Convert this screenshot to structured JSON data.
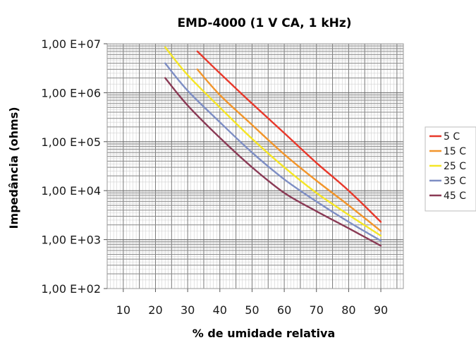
{
  "chart_data": {
    "type": "line",
    "title": "EMD-4000 (1 V CA, 1 kHz)",
    "xlabel": "% de umidade relativa",
    "ylabel": "Impedância (ohms)",
    "xlim": [
      5,
      97
    ],
    "ylim": [
      100,
      10000000
    ],
    "yscale": "log",
    "x_ticks": [
      10,
      20,
      30,
      40,
      50,
      60,
      70,
      80,
      90
    ],
    "y_ticks": [
      100,
      1000,
      10000,
      100000,
      1000000,
      10000000
    ],
    "y_tick_labels": [
      "1,00 E+02",
      "1,00 E+03",
      "1,00 E+04",
      "1,00 E+05",
      "1,00 E+06",
      "1,00 E+07"
    ],
    "grid": true,
    "legend": "right",
    "series": [
      {
        "name": "5 C",
        "color": "#e8382a",
        "x": [
          33,
          40,
          50,
          60,
          70,
          80,
          90
        ],
        "y": [
          7000000,
          2500000,
          600000,
          150000,
          37000,
          10000,
          2300
        ]
      },
      {
        "name": "15 C",
        "color": "#f2952b",
        "x": [
          33,
          40,
          50,
          60,
          70,
          80,
          90
        ],
        "y": [
          3000000,
          900000,
          220000,
          55000,
          16000,
          5000,
          1500
        ]
      },
      {
        "name": "25 C",
        "color": "#f5e626",
        "x": [
          23,
          30,
          40,
          50,
          60,
          70,
          80,
          90
        ],
        "y": [
          8500000,
          2300000,
          500000,
          115000,
          30000,
          9000,
          3200,
          1200
        ]
      },
      {
        "name": "35 C",
        "color": "#7e8ec4",
        "x": [
          23,
          30,
          40,
          50,
          60,
          70,
          80,
          90
        ],
        "y": [
          4000000,
          1100000,
          250000,
          60000,
          17000,
          6000,
          2300,
          950
        ]
      },
      {
        "name": "45 C",
        "color": "#8a3a55",
        "x": [
          23,
          30,
          40,
          50,
          60,
          70,
          80,
          90
        ],
        "y": [
          2000000,
          550000,
          120000,
          30000,
          9000,
          3800,
          1700,
          750
        ]
      }
    ]
  }
}
